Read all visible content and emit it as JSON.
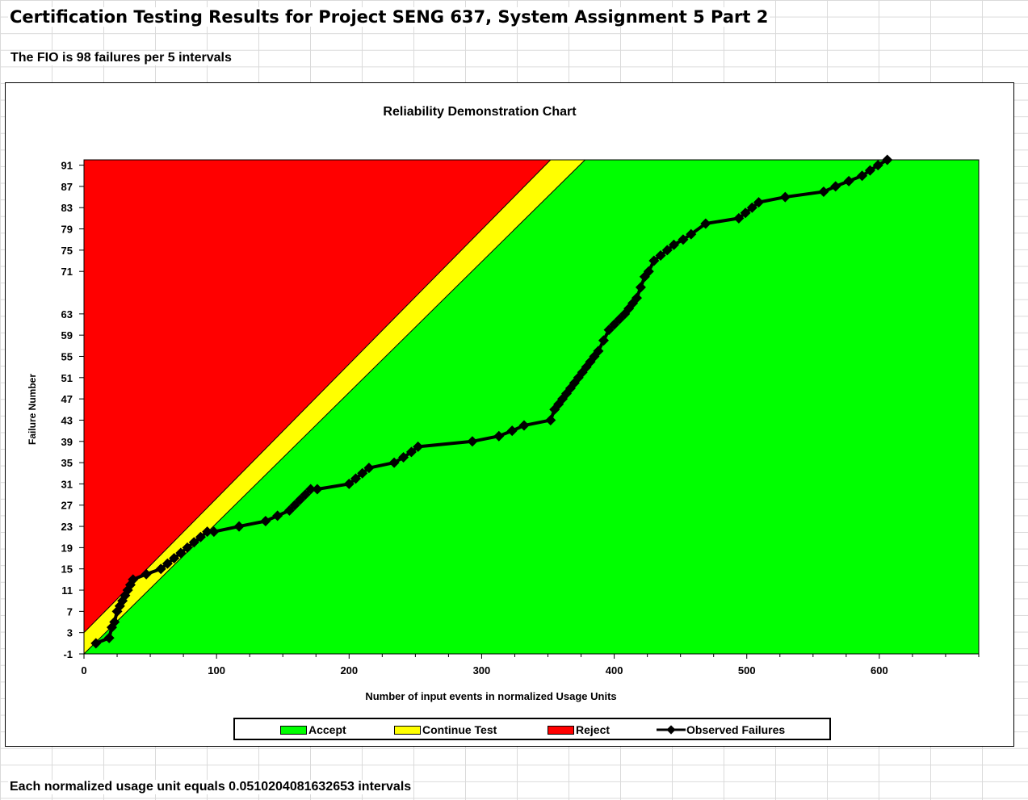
{
  "sheet": {
    "title": "Certification Testing Results for Project SENG 637, System Assignment 5 Part 2",
    "fio_note": "The FIO is 98 failures per 5 intervals",
    "footer": "Each normalized usage unit equals 0.0510204081632653 intervals"
  },
  "colors": {
    "accept": "#00ff00",
    "continue": "#ffff00",
    "reject": "#ff0000",
    "observed": "#000000"
  },
  "chart_data": {
    "type": "line",
    "title": "Reliability Demonstration Chart",
    "xlabel": "Number of input events in normalized Usage Units",
    "ylabel": "Failure Number",
    "xlim": [
      0,
      675
    ],
    "ylim": [
      -1,
      92
    ],
    "x_ticks": [
      0,
      100,
      200,
      300,
      400,
      500,
      600
    ],
    "y_ticks": [
      -1,
      3,
      7,
      11,
      15,
      19,
      23,
      27,
      31,
      35,
      39,
      43,
      47,
      51,
      55,
      59,
      63,
      71,
      75,
      79,
      83,
      87,
      91
    ],
    "grid": false,
    "legend_position": "bottom",
    "regions": [
      {
        "name": "Accept"
      },
      {
        "name": "Continue Test"
      },
      {
        "name": "Reject"
      }
    ],
    "boundaries": {
      "reject_line": [
        [
          0,
          3
        ],
        [
          352,
          92
        ]
      ],
      "accept_line": [
        [
          0,
          -1
        ],
        [
          378,
          92
        ]
      ]
    },
    "series": [
      {
        "name": "Observed Failures",
        "x": [
          9,
          19,
          21,
          23,
          25,
          27,
          29,
          31,
          33,
          35,
          37,
          47,
          58,
          63,
          68,
          73,
          78,
          83,
          88,
          93,
          98,
          117,
          137,
          146,
          155,
          159,
          163,
          167,
          171,
          176,
          200,
          205,
          210,
          215,
          234,
          241,
          247,
          252,
          293,
          313,
          323,
          332,
          352,
          355,
          358,
          361,
          364,
          367,
          370,
          373,
          376,
          379,
          382,
          385,
          388,
          392,
          396,
          400,
          404,
          408,
          411,
          414,
          417,
          420,
          423,
          426,
          430,
          435,
          440,
          445,
          452,
          458,
          469,
          494,
          499,
          504,
          509,
          529,
          558,
          567,
          577,
          587,
          593,
          599,
          606
        ],
        "y": [
          1,
          2,
          4,
          5,
          7,
          8,
          9,
          10,
          11,
          12,
          13,
          14,
          15,
          16,
          17,
          18,
          19,
          20,
          21,
          22,
          22,
          23,
          24,
          25,
          26,
          27,
          28,
          29,
          30,
          30,
          31,
          32,
          33,
          34,
          35,
          36,
          37,
          38,
          39,
          40,
          41,
          42,
          43,
          45,
          46,
          47,
          48,
          49,
          50,
          51,
          52,
          53,
          54,
          55,
          56,
          58,
          60,
          61,
          62,
          63,
          64,
          65,
          66,
          68,
          70,
          71,
          73,
          74,
          75,
          76,
          77,
          78,
          80,
          81,
          82,
          83,
          84,
          85,
          86,
          87,
          88,
          89,
          90,
          91,
          92
        ]
      }
    ]
  }
}
